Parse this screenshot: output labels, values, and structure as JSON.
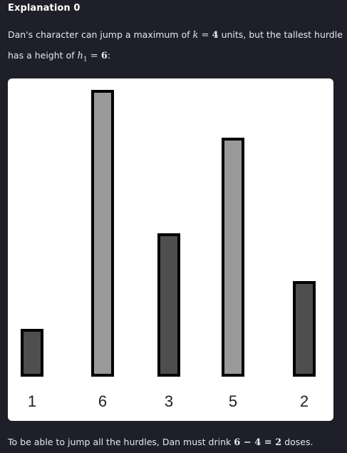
{
  "header": {
    "title": "Explanation 0"
  },
  "intro": {
    "text_1": "Dan's character can jump a maximum of ",
    "k_var": "k",
    "eq_1": " = ",
    "k_val": "4",
    "text_2": " units, but the tallest hurdle has a height of ",
    "h_var": "h",
    "h_sub": "1",
    "eq_2": " = ",
    "h_val": "6",
    "text_3": ":"
  },
  "chart_data": {
    "type": "bar",
    "categories": [
      "1",
      "6",
      "3",
      "5",
      "2"
    ],
    "values": [
      1,
      6,
      3,
      5,
      2
    ],
    "bar_shades": [
      "dark",
      "light",
      "dark",
      "light",
      "dark"
    ],
    "title": "",
    "xlabel": "",
    "ylabel": "",
    "ylim": [
      0,
      6
    ],
    "grid": false,
    "colors": {
      "dark": "#4e4e4e",
      "light": "#9a9a9a",
      "outline": "#000000"
    }
  },
  "conclusion": {
    "text_1": "To be able to jump all the hurdles, Dan must drink ",
    "expr": "6 − 4 = 2",
    "text_2": " doses."
  }
}
